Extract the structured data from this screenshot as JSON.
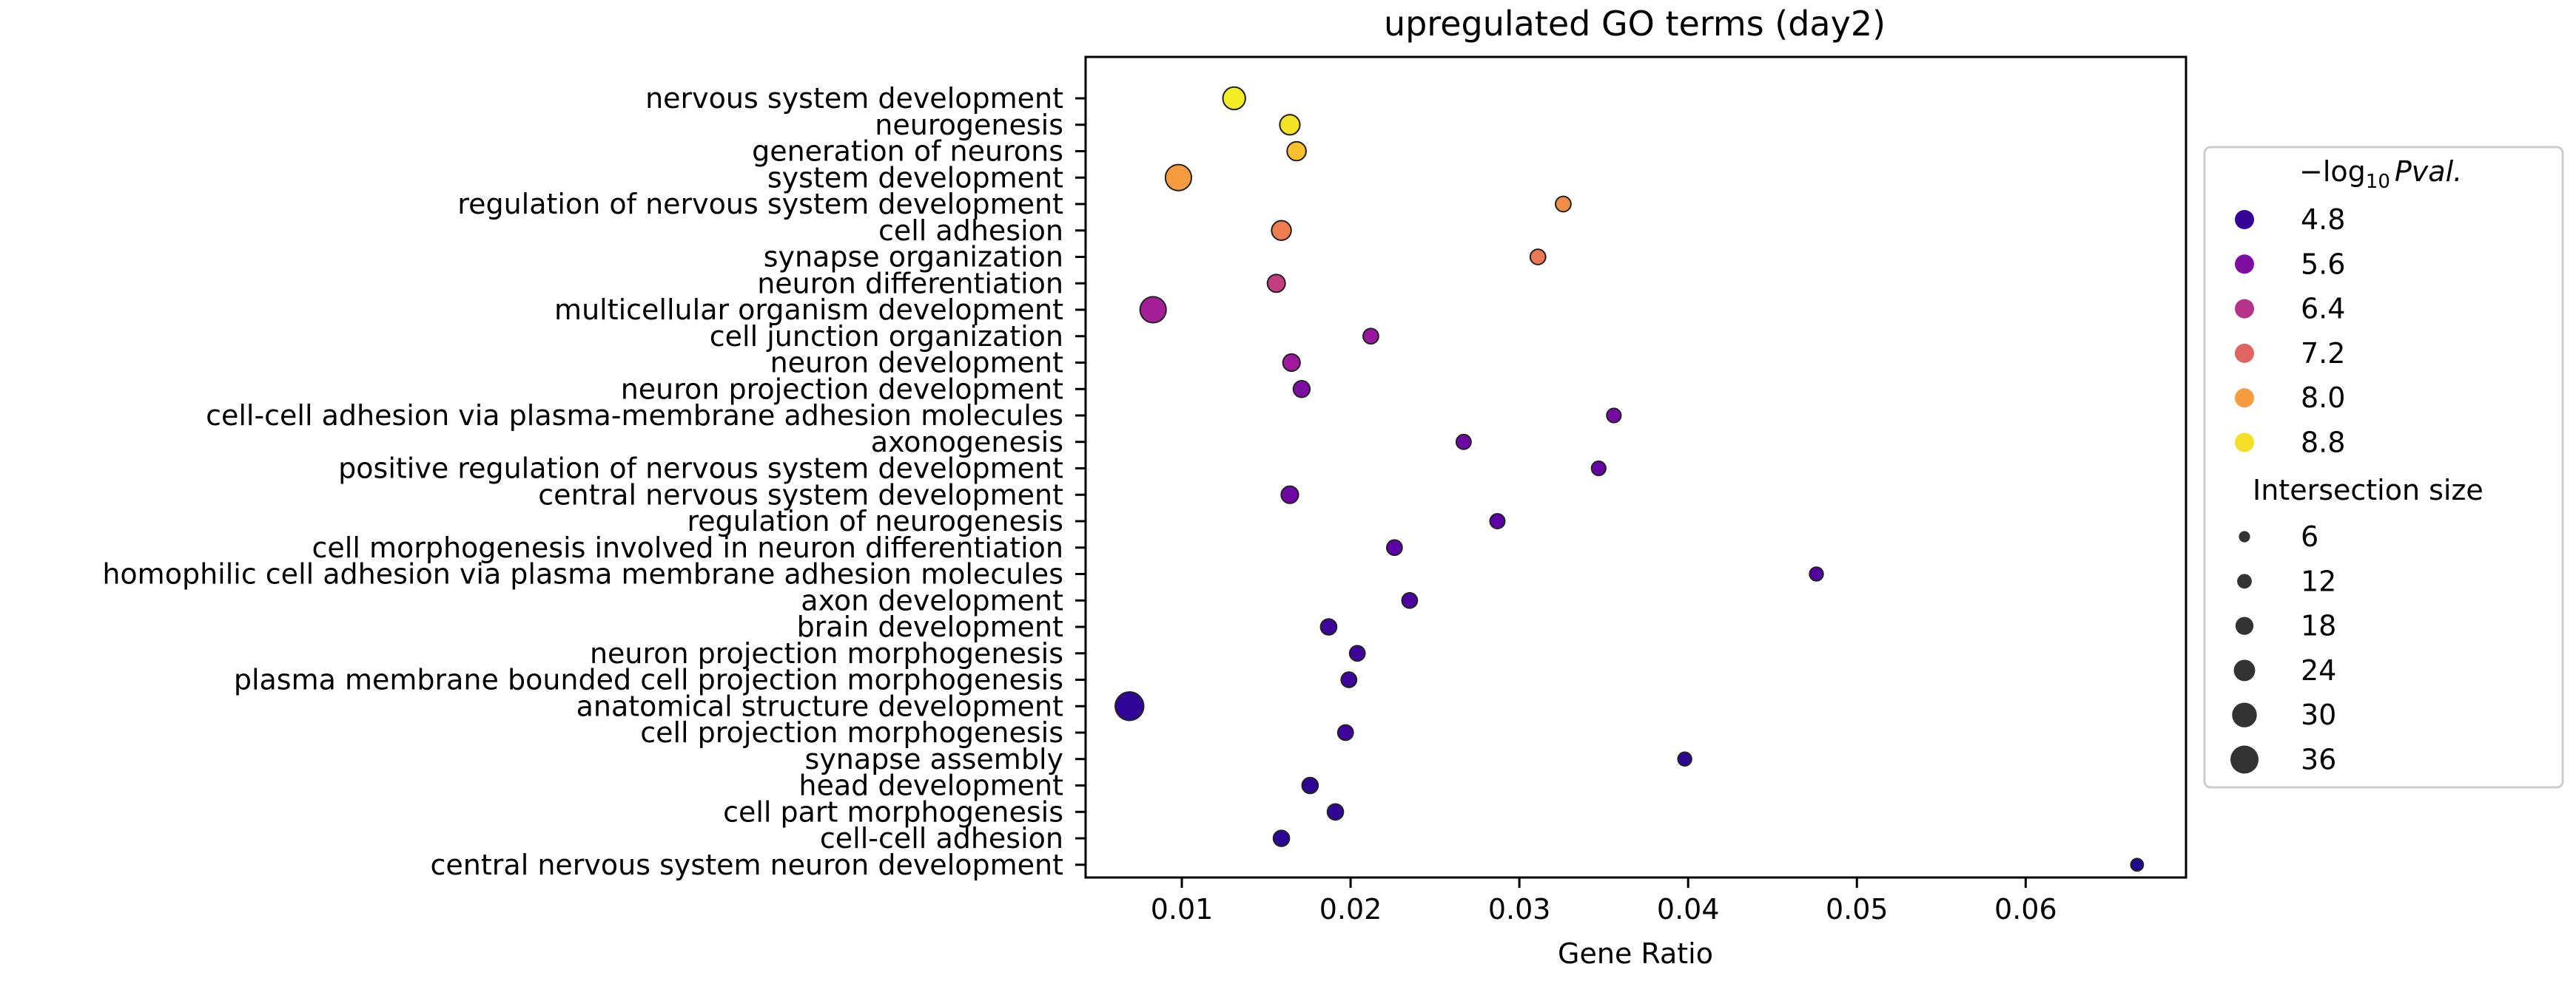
{
  "chart_data": {
    "type": "scatter",
    "title": "upregulated GO terms (day2)",
    "xlabel": "Gene Ratio",
    "ylabel": "",
    "xlim": [
      0.0043,
      0.0695
    ],
    "xticks": [
      "0.01",
      "0.02",
      "0.03",
      "0.04",
      "0.05",
      "0.06"
    ],
    "xtick_values": [
      0.01,
      0.02,
      0.03,
      0.04,
      0.05,
      0.06
    ],
    "grid": false,
    "legend_position": "right",
    "colormap": [
      "#0d0887",
      "#5c01a6",
      "#9c179e",
      "#cc4778",
      "#ed7953",
      "#fdb42f",
      "#f0f921"
    ],
    "color_scale_range": [
      4.4,
      9.1
    ],
    "size_scale_range": [
      6,
      36
    ],
    "color_legend": {
      "title": "−log₁₀ Pval.",
      "title_parts": {
        "prefix": "−log",
        "sub": "10",
        "italic": "Pval."
      },
      "labels": [
        "4.8",
        "5.6",
        "6.4",
        "7.2",
        "8.0",
        "8.8"
      ],
      "values": [
        4.8,
        5.6,
        6.4,
        7.2,
        8.0,
        8.8
      ]
    },
    "size_legend": {
      "title": "Intersection size",
      "labels": [
        "6",
        "12",
        "18",
        "24",
        "30",
        "36"
      ],
      "values": [
        6,
        12,
        18,
        24,
        30,
        36
      ]
    },
    "points": [
      {
        "term": "nervous system development",
        "gene_ratio": 0.0131,
        "neg_log10_pval": 8.95,
        "intersection_size": 24
      },
      {
        "term": "neurogenesis",
        "gene_ratio": 0.0164,
        "neg_log10_pval": 8.85,
        "intersection_size": 20
      },
      {
        "term": "generation of neurons",
        "gene_ratio": 0.0168,
        "neg_log10_pval": 8.45,
        "intersection_size": 18
      },
      {
        "term": "system development",
        "gene_ratio": 0.0098,
        "neg_log10_pval": 8.0,
        "intersection_size": 30
      },
      {
        "term": "regulation of nervous system development",
        "gene_ratio": 0.0326,
        "neg_log10_pval": 7.8,
        "intersection_size": 12
      },
      {
        "term": "cell adhesion",
        "gene_ratio": 0.0159,
        "neg_log10_pval": 7.6,
        "intersection_size": 19
      },
      {
        "term": "synapse organization",
        "gene_ratio": 0.0311,
        "neg_log10_pval": 7.5,
        "intersection_size": 12
      },
      {
        "term": "neuron differentiation",
        "gene_ratio": 0.0156,
        "neg_log10_pval": 6.6,
        "intersection_size": 16
      },
      {
        "term": "multicellular organism development",
        "gene_ratio": 0.0083,
        "neg_log10_pval": 6.1,
        "intersection_size": 30
      },
      {
        "term": "cell junction organization",
        "gene_ratio": 0.0212,
        "neg_log10_pval": 5.95,
        "intersection_size": 12
      },
      {
        "term": "neuron development",
        "gene_ratio": 0.0165,
        "neg_log10_pval": 6.0,
        "intersection_size": 15
      },
      {
        "term": "neuron projection development",
        "gene_ratio": 0.0171,
        "neg_log10_pval": 5.6,
        "intersection_size": 14
      },
      {
        "term": "cell-cell adhesion via plasma-membrane adhesion molecules",
        "gene_ratio": 0.0356,
        "neg_log10_pval": 5.5,
        "intersection_size": 10
      },
      {
        "term": "axonogenesis",
        "gene_ratio": 0.0267,
        "neg_log10_pval": 5.4,
        "intersection_size": 11
      },
      {
        "term": "positive regulation of nervous system development",
        "gene_ratio": 0.0347,
        "neg_log10_pval": 5.3,
        "intersection_size": 10
      },
      {
        "term": "central nervous system development",
        "gene_ratio": 0.0164,
        "neg_log10_pval": 5.4,
        "intersection_size": 15
      },
      {
        "term": "regulation of neurogenesis",
        "gene_ratio": 0.0287,
        "neg_log10_pval": 5.2,
        "intersection_size": 11
      },
      {
        "term": "cell morphogenesis involved in neuron differentiation",
        "gene_ratio": 0.0226,
        "neg_log10_pval": 5.2,
        "intersection_size": 12
      },
      {
        "term": "homophilic cell adhesion via plasma membrane adhesion molecules",
        "gene_ratio": 0.0476,
        "neg_log10_pval": 5.1,
        "intersection_size": 9
      },
      {
        "term": "axon development",
        "gene_ratio": 0.0235,
        "neg_log10_pval": 5.0,
        "intersection_size": 12
      },
      {
        "term": "brain development",
        "gene_ratio": 0.0187,
        "neg_log10_pval": 4.9,
        "intersection_size": 13
      },
      {
        "term": "neuron projection morphogenesis",
        "gene_ratio": 0.0204,
        "neg_log10_pval": 4.9,
        "intersection_size": 12
      },
      {
        "term": "plasma membrane bounded cell projection morphogenesis",
        "gene_ratio": 0.0199,
        "neg_log10_pval": 4.9,
        "intersection_size": 12
      },
      {
        "term": "anatomical structure development",
        "gene_ratio": 0.0069,
        "neg_log10_pval": 4.75,
        "intersection_size": 34
      },
      {
        "term": "cell projection morphogenesis",
        "gene_ratio": 0.0197,
        "neg_log10_pval": 4.9,
        "intersection_size": 12
      },
      {
        "term": "synapse assembly",
        "gene_ratio": 0.0398,
        "neg_log10_pval": 4.7,
        "intersection_size": 9
      },
      {
        "term": "head development",
        "gene_ratio": 0.0176,
        "neg_log10_pval": 4.75,
        "intersection_size": 13
      },
      {
        "term": "cell part morphogenesis",
        "gene_ratio": 0.0191,
        "neg_log10_pval": 4.75,
        "intersection_size": 13
      },
      {
        "term": "cell-cell adhesion",
        "gene_ratio": 0.0159,
        "neg_log10_pval": 4.7,
        "intersection_size": 13
      },
      {
        "term": "central nervous system neuron development",
        "gene_ratio": 0.0666,
        "neg_log10_pval": 4.6,
        "intersection_size": 7
      }
    ]
  }
}
